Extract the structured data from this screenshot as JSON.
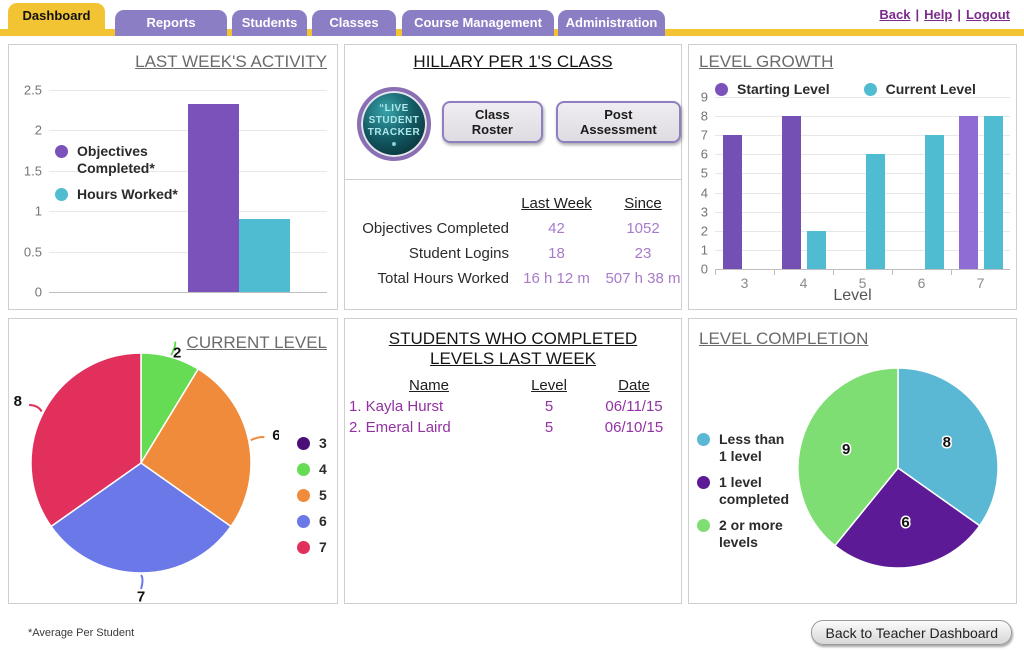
{
  "nav": {
    "tabs": [
      {
        "label": "Dashboard",
        "active": true
      },
      {
        "label": "Reports",
        "active": false
      },
      {
        "label": "Students",
        "active": false
      },
      {
        "label": "Classes",
        "active": false
      },
      {
        "label": "Course Management",
        "active": false
      },
      {
        "label": "Administration",
        "active": false
      }
    ],
    "separator": "|",
    "links": {
      "back": "Back",
      "help": "Help",
      "logout": "Logout"
    }
  },
  "class_panel": {
    "title": "HILLARY PER 1'S CLASS",
    "badge_lines": [
      "“LIVE",
      "STUDENT",
      "TRACKER"
    ],
    "buttons": {
      "class_roster": "Class Roster",
      "post_assessment": "Post Assessment"
    },
    "stats": {
      "col_headers": {
        "last_week": "Last Week",
        "since": "Since"
      },
      "rows": [
        {
          "label": "Objectives Completed",
          "last_week": "42",
          "since": "1052"
        },
        {
          "label": "Student Logins",
          "last_week": "18",
          "since": "23"
        },
        {
          "label": "Total Hours Worked",
          "last_week": "16 h 12 m",
          "since": "507 h 38 m"
        }
      ]
    }
  },
  "completed_panel": {
    "title_line1": "STUDENTS WHO COMPLETED",
    "title_line2": "LEVELS LAST WEEK",
    "headers": {
      "name": "Name",
      "level": "Level",
      "date": "Date"
    },
    "rows": [
      {
        "name": "1. Kayla Hurst",
        "level": "5",
        "date": "06/11/15"
      },
      {
        "name": "2. Emeral Laird",
        "level": "5",
        "date": "06/10/15"
      }
    ]
  },
  "footer": {
    "note": "*Average Per Student",
    "back_button": "Back to Teacher Dashboard"
  },
  "chart_data": [
    {
      "id": "activity",
      "type": "bar",
      "title": "LAST WEEK'S ACTIVITY",
      "categories": [
        ""
      ],
      "series": [
        {
          "name": "Objectives Completed*",
          "color": "#7A52B9",
          "values": [
            2.33
          ]
        },
        {
          "name": "Hours Worked*",
          "color": "#4FBCD2",
          "values": [
            0.9
          ]
        }
      ],
      "ylim": [
        0,
        2.5
      ],
      "yticks": [
        0,
        0.5,
        1,
        1.5,
        2,
        2.5
      ],
      "grid": true,
      "legend_position": "left",
      "show_xticks": false,
      "xlabel": "",
      "ylabel": ""
    },
    {
      "id": "growth",
      "type": "bar",
      "title": "LEVEL GROWTH",
      "categories": [
        "3",
        "4",
        "5",
        "6",
        "7"
      ],
      "series": [
        {
          "name": "Starting Level",
          "color": "#7A52B9",
          "colors": [
            "#7450B5",
            "#7450B5",
            null,
            null,
            "#8F6CD4"
          ],
          "values": [
            7,
            8,
            0,
            0,
            8
          ]
        },
        {
          "name": "Current Level",
          "color": "#4FBCD2",
          "values": [
            0,
            2,
            6,
            7,
            8
          ]
        }
      ],
      "ylim": [
        0,
        9
      ],
      "yticks": [
        0,
        1,
        2,
        3,
        4,
        5,
        6,
        7,
        8,
        9
      ],
      "grid": true,
      "legend_position": "top",
      "show_xticks": true,
      "xlabel": "Level",
      "ylabel": ""
    },
    {
      "id": "current-level",
      "type": "pie",
      "title": "CURRENT LEVEL",
      "categories": [
        "3",
        "4",
        "5",
        "6",
        "7"
      ],
      "values": [
        0,
        2,
        6,
        7,
        8
      ],
      "colors": [
        "#4B1077",
        "#66DC55",
        "#F08B3C",
        "#6B78E8",
        "#E2305C"
      ],
      "label_position": "outside",
      "legend_position": "right"
    },
    {
      "id": "level-completion",
      "type": "pie",
      "title": "LEVEL COMPLETION",
      "categories": [
        "Less than 1 level",
        "1 level completed",
        "2 or more levels"
      ],
      "values": [
        8,
        6,
        9
      ],
      "colors": [
        "#5BB8D4",
        "#5C1A96",
        "#7FDE73"
      ],
      "label_position": "inside",
      "legend_position": "left"
    }
  ]
}
